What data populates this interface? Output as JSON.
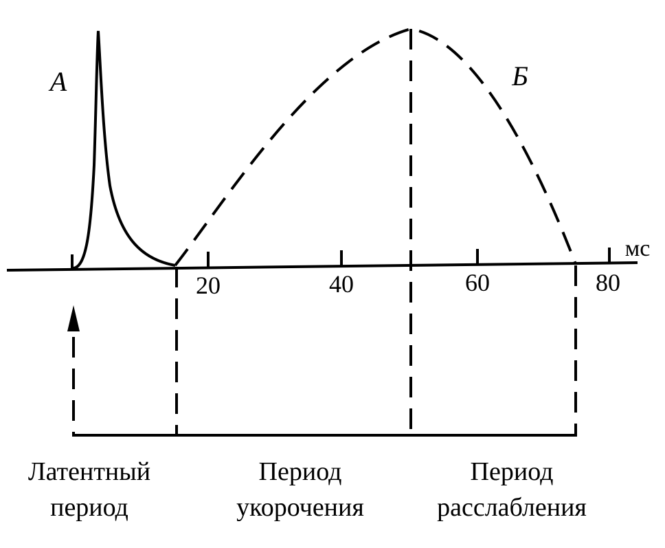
{
  "labels": {
    "a": "А",
    "b": "Б"
  },
  "axis": {
    "unit": "мс",
    "ticks": [
      20,
      40,
      60,
      80
    ]
  },
  "periods": [
    {
      "lines": [
        "Латентный",
        "период"
      ]
    },
    {
      "lines": [
        "Период",
        "укорочения"
      ]
    },
    {
      "lines": [
        "Период",
        "расслабления"
      ]
    }
  ]
}
